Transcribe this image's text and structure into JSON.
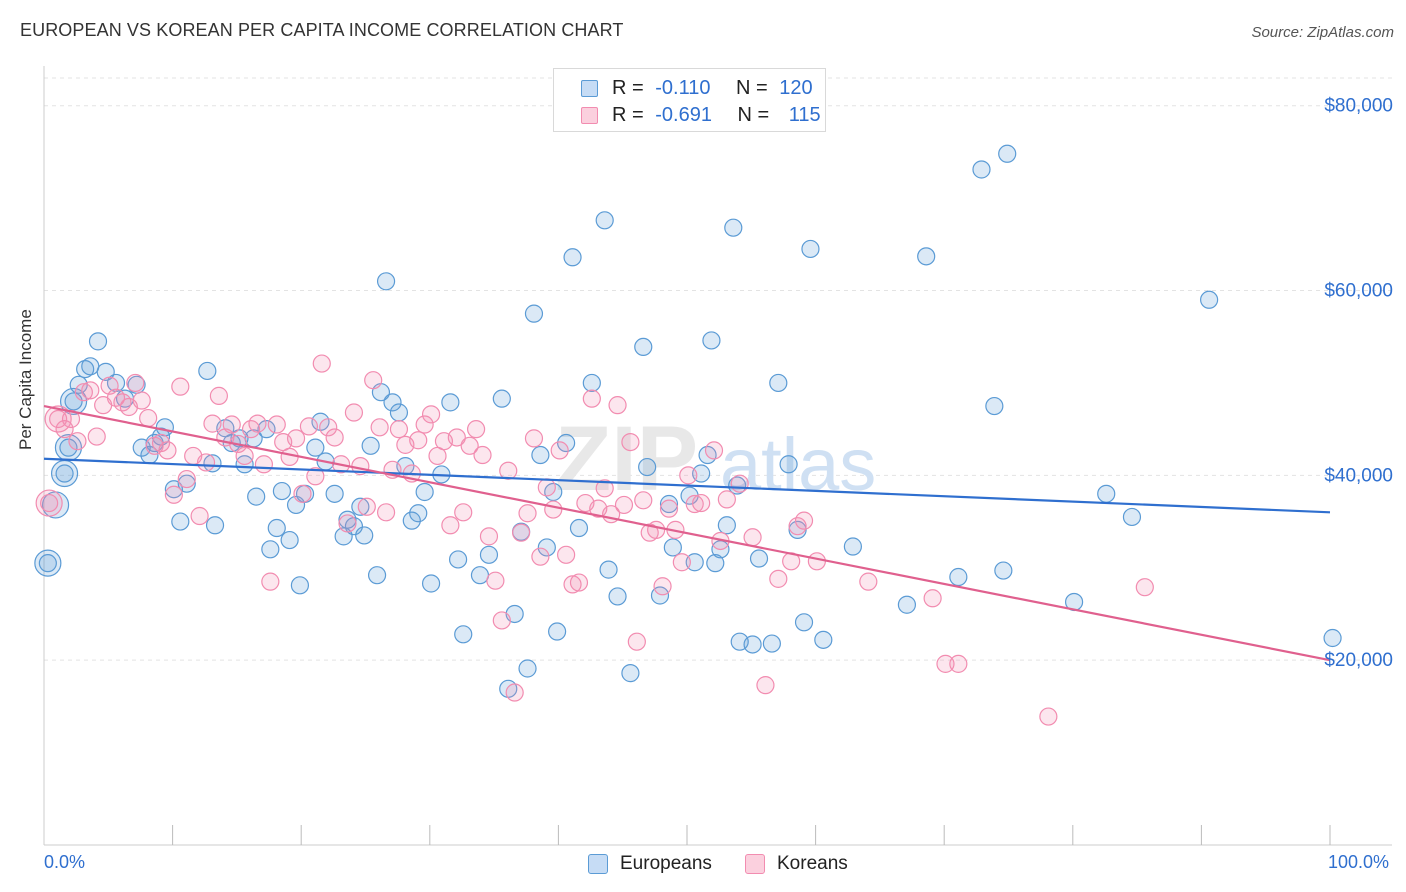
{
  "title": "EUROPEAN VS KOREAN PER CAPITA INCOME CORRELATION CHART",
  "source": "Source: ZipAtlas.com",
  "watermark": "ZIPatlas",
  "legend_stats": [
    {
      "r_label": "R =",
      "r_value": "-0.110",
      "n_label": "N =",
      "n_value": "120",
      "color": "#5b9bd5"
    },
    {
      "r_label": "R =",
      "r_value": "-0.691",
      "n_label": "N =",
      "n_value": "115",
      "color": "#f28cb0"
    }
  ],
  "bottom_legend": [
    {
      "label": "Europeans",
      "color": "#5b9bd5"
    },
    {
      "label": "Koreans",
      "color": "#f28cb0"
    }
  ],
  "chart_data": {
    "type": "scatter",
    "title": "EUROPEAN VS KOREAN PER CAPITA INCOME CORRELATION CHART",
    "xlabel": "",
    "ylabel": "Per Capita Income",
    "xlim": [
      0,
      100
    ],
    "ylim": [
      0,
      83000
    ],
    "x_tick_labels": [
      "0.0%",
      "100.0%"
    ],
    "y_ticks": [
      20000,
      40000,
      60000,
      80000
    ],
    "y_tick_labels": [
      "$20,000",
      "$40,000",
      "$60,000",
      "$80,000"
    ],
    "grid": true,
    "legend_position": "top-center",
    "series": [
      {
        "name": "Europeans",
        "color": "#5b9bd5",
        "line_color": "#2f6fcf",
        "trend": [
          [
            0,
            41800
          ],
          [
            100,
            36000
          ]
        ],
        "points": [
          [
            0.3,
            30500
          ],
          [
            1.6,
            40200
          ],
          [
            1.9,
            43000
          ],
          [
            2.3,
            48000
          ],
          [
            2.7,
            49800
          ],
          [
            3.2,
            51500
          ],
          [
            3.6,
            51800
          ],
          [
            4.2,
            54500
          ],
          [
            4.8,
            51200
          ],
          [
            5.6,
            50000
          ],
          [
            6.3,
            48300
          ],
          [
            7.2,
            49800
          ],
          [
            7.6,
            43000
          ],
          [
            8.2,
            42200
          ],
          [
            8.6,
            43500
          ],
          [
            9.1,
            44200
          ],
          [
            9.4,
            45200
          ],
          [
            10.1,
            38500
          ],
          [
            10.6,
            35000
          ],
          [
            11.1,
            39100
          ],
          [
            12.7,
            51300
          ],
          [
            13.1,
            41300
          ],
          [
            13.3,
            34600
          ],
          [
            14.1,
            45100
          ],
          [
            14.6,
            43500
          ],
          [
            15.2,
            44000
          ],
          [
            15.6,
            41200
          ],
          [
            16.3,
            44000
          ],
          [
            16.5,
            37700
          ],
          [
            17.3,
            45000
          ],
          [
            17.6,
            32000
          ],
          [
            18.1,
            34300
          ],
          [
            18.5,
            38300
          ],
          [
            19.1,
            33000
          ],
          [
            19.6,
            36800
          ],
          [
            19.9,
            28100
          ],
          [
            20.3,
            38000
          ],
          [
            21.1,
            43000
          ],
          [
            21.5,
            45800
          ],
          [
            21.9,
            41500
          ],
          [
            22.6,
            38000
          ],
          [
            23.3,
            33400
          ],
          [
            23.6,
            35200
          ],
          [
            24.1,
            34500
          ],
          [
            24.6,
            36600
          ],
          [
            24.9,
            33500
          ],
          [
            25.4,
            43200
          ],
          [
            25.9,
            29200
          ],
          [
            26.2,
            49000
          ],
          [
            26.6,
            61000
          ],
          [
            27.1,
            47900
          ],
          [
            27.6,
            46800
          ],
          [
            28.1,
            41000
          ],
          [
            28.6,
            35100
          ],
          [
            29.1,
            35900
          ],
          [
            29.6,
            38200
          ],
          [
            30.1,
            28300
          ],
          [
            30.9,
            40100
          ],
          [
            31.6,
            47900
          ],
          [
            32.2,
            30900
          ],
          [
            32.6,
            22800
          ],
          [
            33.9,
            29200
          ],
          [
            34.6,
            31400
          ],
          [
            35.6,
            48300
          ],
          [
            36.1,
            16900
          ],
          [
            36.6,
            25000
          ],
          [
            37.1,
            33900
          ],
          [
            37.6,
            19100
          ],
          [
            38.1,
            57500
          ],
          [
            38.6,
            42200
          ],
          [
            39.1,
            32200
          ],
          [
            39.6,
            38200
          ],
          [
            39.9,
            23100
          ],
          [
            40.6,
            43500
          ],
          [
            41.1,
            63600
          ],
          [
            41.6,
            34300
          ],
          [
            42.6,
            50000
          ],
          [
            43.6,
            67600
          ],
          [
            43.9,
            29800
          ],
          [
            44.6,
            26900
          ],
          [
            45.6,
            18600
          ],
          [
            46.6,
            53900
          ],
          [
            46.9,
            40900
          ],
          [
            47.9,
            27000
          ],
          [
            48.6,
            36900
          ],
          [
            48.9,
            32200
          ],
          [
            50.2,
            37800
          ],
          [
            50.6,
            30600
          ],
          [
            51.1,
            40200
          ],
          [
            51.6,
            42200
          ],
          [
            51.9,
            54600
          ],
          [
            52.2,
            30500
          ],
          [
            52.6,
            32000
          ],
          [
            53.1,
            34600
          ],
          [
            53.6,
            66800
          ],
          [
            53.9,
            38900
          ],
          [
            54.1,
            22000
          ],
          [
            55.1,
            21700
          ],
          [
            55.6,
            31000
          ],
          [
            56.6,
            21800
          ],
          [
            57.1,
            50000
          ],
          [
            57.9,
            41200
          ],
          [
            58.6,
            34100
          ],
          [
            59.1,
            24100
          ],
          [
            59.6,
            64500
          ],
          [
            60.6,
            22200
          ],
          [
            62.9,
            32300
          ],
          [
            67.1,
            26000
          ],
          [
            68.6,
            63700
          ],
          [
            71.1,
            29000
          ],
          [
            72.9,
            73100
          ],
          [
            73.9,
            47500
          ],
          [
            74.6,
            29700
          ],
          [
            74.9,
            74800
          ],
          [
            80.1,
            26300
          ],
          [
            82.6,
            38000
          ],
          [
            84.6,
            35500
          ],
          [
            90.6,
            59000
          ],
          [
            100.2,
            22400
          ]
        ],
        "large_points": [
          [
            1.9,
            43000
          ],
          [
            1.6,
            40200
          ],
          [
            0.3,
            30500
          ],
          [
            0.9,
            36800
          ],
          [
            2.3,
            48000
          ]
        ]
      },
      {
        "name": "Koreans",
        "color": "#f28cb0",
        "line_color": "#e0608e",
        "trend": [
          [
            0,
            47500
          ],
          [
            100,
            20000
          ]
        ],
        "points": [
          [
            0.4,
            37000
          ],
          [
            1.1,
            46100
          ],
          [
            1.6,
            45000
          ],
          [
            2.1,
            46100
          ],
          [
            2.6,
            43700
          ],
          [
            3.1,
            49000
          ],
          [
            3.6,
            49200
          ],
          [
            4.1,
            44200
          ],
          [
            4.6,
            47600
          ],
          [
            5.1,
            49700
          ],
          [
            5.6,
            48400
          ],
          [
            6.1,
            47900
          ],
          [
            6.6,
            47400
          ],
          [
            7.1,
            50000
          ],
          [
            7.6,
            48100
          ],
          [
            8.1,
            46200
          ],
          [
            8.6,
            43200
          ],
          [
            9.1,
            43500
          ],
          [
            9.6,
            42700
          ],
          [
            10.1,
            37900
          ],
          [
            10.6,
            49600
          ],
          [
            11.1,
            39600
          ],
          [
            11.6,
            42100
          ],
          [
            12.1,
            35600
          ],
          [
            12.6,
            41400
          ],
          [
            13.1,
            45600
          ],
          [
            13.6,
            48600
          ],
          [
            14.1,
            44100
          ],
          [
            14.6,
            45500
          ],
          [
            15.1,
            43400
          ],
          [
            15.6,
            42100
          ],
          [
            16.1,
            45000
          ],
          [
            16.6,
            45600
          ],
          [
            17.1,
            41200
          ],
          [
            17.6,
            28500
          ],
          [
            18.1,
            45500
          ],
          [
            18.6,
            43600
          ],
          [
            19.1,
            42000
          ],
          [
            19.6,
            44000
          ],
          [
            20.1,
            38000
          ],
          [
            20.6,
            45300
          ],
          [
            21.1,
            39900
          ],
          [
            21.6,
            52100
          ],
          [
            22.1,
            45200
          ],
          [
            22.6,
            44100
          ],
          [
            23.1,
            41200
          ],
          [
            23.6,
            34800
          ],
          [
            24.1,
            46800
          ],
          [
            24.6,
            41000
          ],
          [
            25.1,
            36600
          ],
          [
            25.6,
            50300
          ],
          [
            26.1,
            45200
          ],
          [
            26.6,
            36000
          ],
          [
            27.1,
            40600
          ],
          [
            27.6,
            45000
          ],
          [
            28.1,
            43300
          ],
          [
            28.6,
            40200
          ],
          [
            29.1,
            43800
          ],
          [
            29.6,
            45500
          ],
          [
            30.1,
            46600
          ],
          [
            30.6,
            42100
          ],
          [
            31.1,
            43700
          ],
          [
            31.6,
            34600
          ],
          [
            32.1,
            44100
          ],
          [
            32.6,
            36000
          ],
          [
            33.1,
            43200
          ],
          [
            33.6,
            45000
          ],
          [
            34.1,
            42200
          ],
          [
            34.6,
            33400
          ],
          [
            35.1,
            28600
          ],
          [
            35.6,
            24300
          ],
          [
            36.1,
            40500
          ],
          [
            36.6,
            16500
          ],
          [
            37.1,
            33800
          ],
          [
            37.6,
            35900
          ],
          [
            38.1,
            44000
          ],
          [
            38.6,
            31200
          ],
          [
            39.1,
            38700
          ],
          [
            39.6,
            36300
          ],
          [
            40.1,
            42700
          ],
          [
            40.6,
            31400
          ],
          [
            41.1,
            28200
          ],
          [
            41.6,
            28400
          ],
          [
            42.1,
            37000
          ],
          [
            42.6,
            48300
          ],
          [
            43.1,
            36400
          ],
          [
            43.6,
            38600
          ],
          [
            44.1,
            35800
          ],
          [
            44.6,
            47600
          ],
          [
            45.1,
            36800
          ],
          [
            45.6,
            43600
          ],
          [
            46.1,
            22000
          ],
          [
            46.6,
            37300
          ],
          [
            47.1,
            33800
          ],
          [
            47.6,
            34100
          ],
          [
            48.1,
            28000
          ],
          [
            48.6,
            36400
          ],
          [
            49.1,
            34100
          ],
          [
            49.6,
            30600
          ],
          [
            50.1,
            40000
          ],
          [
            50.6,
            36900
          ],
          [
            51.1,
            37000
          ],
          [
            52.1,
            42700
          ],
          [
            52.6,
            32900
          ],
          [
            53.1,
            37400
          ],
          [
            54.1,
            39100
          ],
          [
            55.1,
            33300
          ],
          [
            56.1,
            17300
          ],
          [
            57.1,
            28800
          ],
          [
            58.1,
            30700
          ],
          [
            58.6,
            34500
          ],
          [
            59.1,
            35100
          ],
          [
            60.1,
            30700
          ],
          [
            64.1,
            28500
          ],
          [
            69.1,
            26700
          ],
          [
            70.1,
            19600
          ],
          [
            71.1,
            19600
          ],
          [
            78.1,
            13900
          ],
          [
            85.6,
            27900
          ]
        ],
        "large_points": [
          [
            0.4,
            37000
          ],
          [
            1.1,
            46100
          ]
        ]
      }
    ]
  }
}
